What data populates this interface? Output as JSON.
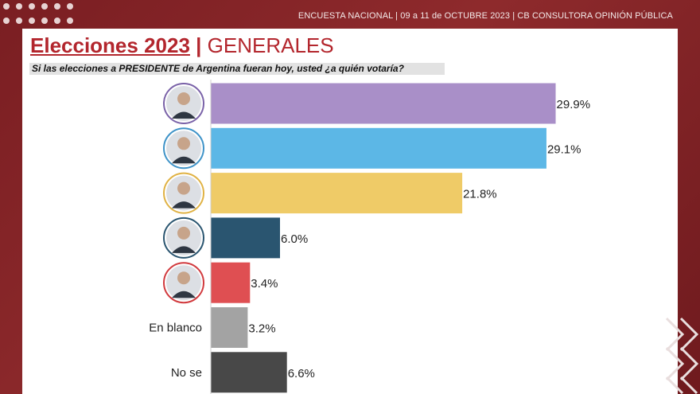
{
  "header": {
    "survey_info": "ENCUESTA NACIONAL | 09 a 11 de OCTUBRE 2023 | CB CONSULTORA OPINIÓN PÚBLICA"
  },
  "title": {
    "main": "Elecciones 2023",
    "separator": "|",
    "sub": "GENERALES"
  },
  "question": "Si las elecciones a PRESIDENTE de Argentina fueran hoy, usted ¿a quién votaría?",
  "chart_data": {
    "type": "bar",
    "orientation": "horizontal",
    "xlim": [
      0,
      30
    ],
    "categories": [
      "",
      "",
      "",
      "",
      "",
      "En blanco",
      "No se"
    ],
    "values": [
      29.9,
      29.1,
      21.8,
      6.0,
      3.4,
      3.2,
      6.6
    ],
    "value_labels": [
      "29.9%",
      "29.1%",
      "21.8%",
      "6.0%",
      "3.4%",
      "3.2%",
      "6.6%"
    ],
    "colors": [
      "#a98fc8",
      "#5cb7e6",
      "#efcb67",
      "#2a5570",
      "#df4f52",
      "#a3a3a3",
      "#484848"
    ],
    "avatar_rings": [
      "#7a62a8",
      "#3f93c8",
      "#e0b244",
      "#2a5570",
      "#d13a3e",
      null,
      null
    ]
  },
  "colors": {
    "background": "#7a1e22",
    "title": "#b3262d"
  }
}
